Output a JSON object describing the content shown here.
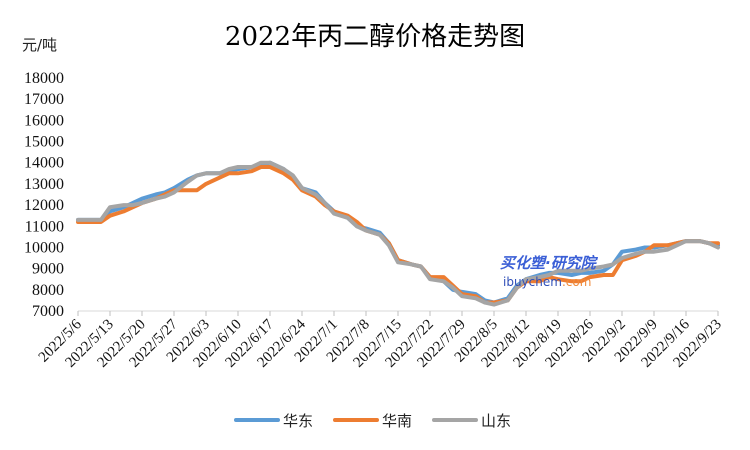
{
  "chart_data": {
    "type": "line",
    "title": "2022年丙二醇价格走势图",
    "unit_label": "元/吨",
    "ylim": [
      7000,
      18000
    ],
    "y_ticks": [
      7000,
      8000,
      9000,
      10000,
      11000,
      12000,
      13000,
      14000,
      15000,
      16000,
      17000,
      18000
    ],
    "grid": false,
    "legend_position": "bottom",
    "x_tick_labels": [
      "2022/5/6",
      "2022/5/13",
      "2022/5/20",
      "2022/5/27",
      "2022/6/3",
      "2022/6/10",
      "2022/6/17",
      "2022/6/24",
      "2022/7/1",
      "2022/7/8",
      "2022/7/15",
      "2022/7/22",
      "2022/7/29",
      "2022/8/5",
      "2022/8/12",
      "2022/8/19",
      "2022/8/26",
      "2022/9/2",
      "2022/9/9",
      "2022/9/16",
      "2022/9/23"
    ],
    "x": [
      "2022/5/6",
      "2022/5/9",
      "2022/5/11",
      "2022/5/13",
      "2022/5/16",
      "2022/5/18",
      "2022/5/20",
      "2022/5/23",
      "2022/5/25",
      "2022/5/27",
      "2022/5/30",
      "2022/6/1",
      "2022/6/3",
      "2022/6/6",
      "2022/6/8",
      "2022/6/10",
      "2022/6/13",
      "2022/6/15",
      "2022/6/17",
      "2022/6/20",
      "2022/6/22",
      "2022/6/24",
      "2022/6/27",
      "2022/6/29",
      "2022/7/1",
      "2022/7/4",
      "2022/7/6",
      "2022/7/8",
      "2022/7/11",
      "2022/7/13",
      "2022/7/15",
      "2022/7/18",
      "2022/7/20",
      "2022/7/22",
      "2022/7/25",
      "2022/7/27",
      "2022/7/29",
      "2022/8/1",
      "2022/8/3",
      "2022/8/5",
      "2022/8/8",
      "2022/8/10",
      "2022/8/12",
      "2022/8/15",
      "2022/8/17",
      "2022/8/19",
      "2022/8/22",
      "2022/8/24",
      "2022/8/26",
      "2022/8/29",
      "2022/8/31",
      "2022/9/2",
      "2022/9/5",
      "2022/9/7",
      "2022/9/9",
      "2022/9/12",
      "2022/9/14",
      "2022/9/16",
      "2022/9/19",
      "2022/9/21",
      "2022/9/23"
    ],
    "series": [
      {
        "name": "华东",
        "color": "#5b9bd5",
        "values": [
          11300,
          11300,
          11300,
          11700,
          11900,
          12100,
          12300,
          12500,
          12600,
          12800,
          13200,
          13400,
          13500,
          13500,
          13600,
          13700,
          13800,
          13900,
          14000,
          13700,
          13300,
          12800,
          12600,
          12100,
          11700,
          11400,
          11000,
          10900,
          10700,
          10200,
          9400,
          9200,
          9100,
          8600,
          8400,
          8000,
          7900,
          7800,
          7500,
          7400,
          7600,
          8200,
          8500,
          8700,
          8800,
          8800,
          8700,
          8800,
          8800,
          8900,
          9200,
          9800,
          9900,
          10000,
          10000,
          10100,
          10200,
          10300,
          10300,
          10200,
          10100
        ]
      },
      {
        "name": "华南",
        "color": "#ed7d31",
        "values": [
          11200,
          11200,
          11200,
          11500,
          11700,
          11900,
          12100,
          12300,
          12500,
          12700,
          12700,
          12700,
          13000,
          13300,
          13500,
          13500,
          13600,
          13800,
          13800,
          13500,
          13200,
          12700,
          12400,
          12000,
          11700,
          11500,
          11200,
          10800,
          10600,
          10200,
          9400,
          9200,
          9100,
          8600,
          8600,
          8200,
          7800,
          7700,
          7400,
          7400,
          7500,
          8100,
          8400,
          8400,
          8600,
          8500,
          8400,
          8400,
          8600,
          8700,
          8700,
          9400,
          9600,
          9800,
          10100,
          10100,
          10200,
          10300,
          10300,
          10200,
          10200
        ]
      },
      {
        "name": "山东",
        "color": "#a5a5a5",
        "values": [
          11300,
          11300,
          11300,
          11900,
          12000,
          12000,
          12100,
          12300,
          12400,
          12600,
          13100,
          13400,
          13500,
          13500,
          13700,
          13800,
          13800,
          14000,
          14000,
          13700,
          13400,
          12800,
          12500,
          12100,
          11600,
          11400,
          11000,
          10800,
          10600,
          10100,
          9300,
          9200,
          9100,
          8500,
          8400,
          8100,
          7700,
          7600,
          7400,
          7300,
          7500,
          8100,
          8500,
          8600,
          8700,
          8900,
          8900,
          8900,
          9000,
          9100,
          9200,
          9500,
          9700,
          9800,
          9800,
          9900,
          10100,
          10300,
          10300,
          10200,
          10000
        ]
      }
    ]
  },
  "watermark": {
    "main": "买化塑·研究院",
    "sub_part1": "ibuychem",
    "sub_part2": ".com"
  }
}
